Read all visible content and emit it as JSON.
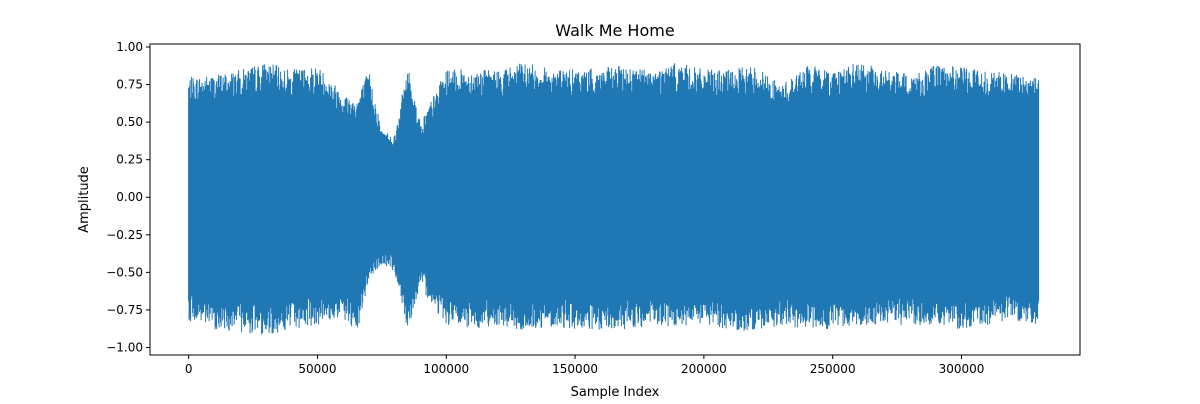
{
  "chart_data": {
    "type": "line",
    "title": "Walk Me Home",
    "xlabel": "Sample Index",
    "ylabel": "Amplitude",
    "xlim": [
      -15000,
      346000
    ],
    "ylim": [
      -1.05,
      1.02
    ],
    "xticks": [
      0,
      50000,
      100000,
      150000,
      200000,
      250000,
      300000
    ],
    "xtick_labels": [
      "0",
      "50000",
      "100000",
      "150000",
      "200000",
      "250000",
      "300000"
    ],
    "yticks": [
      -1.0,
      -0.75,
      -0.5,
      -0.25,
      0.0,
      0.25,
      0.5,
      0.75,
      1.0
    ],
    "ytick_labels": [
      "−1.00",
      "−0.75",
      "−0.50",
      "−0.25",
      "0.00",
      "0.25",
      "0.50",
      "0.75",
      "1.00"
    ],
    "grid": false,
    "series": [
      {
        "color": "#1f77b4",
        "x_range": [
          0,
          330000
        ],
        "envelope_x": [
          0,
          10000,
          20000,
          30000,
          40000,
          50000,
          60000,
          65000,
          70000,
          75000,
          80000,
          85000,
          90000,
          100000,
          110000,
          120000,
          130000,
          140000,
          150000,
          160000,
          170000,
          180000,
          190000,
          200000,
          210000,
          220000,
          230000,
          240000,
          250000,
          260000,
          270000,
          280000,
          290000,
          300000,
          310000,
          320000,
          330000
        ],
        "envelope_upper": [
          0.8,
          0.82,
          0.85,
          0.9,
          0.85,
          0.88,
          0.7,
          0.65,
          0.85,
          0.45,
          0.42,
          0.88,
          0.5,
          0.85,
          0.85,
          0.85,
          0.9,
          0.86,
          0.85,
          0.86,
          0.88,
          0.85,
          0.9,
          0.85,
          0.85,
          0.88,
          0.75,
          0.88,
          0.85,
          0.9,
          0.85,
          0.82,
          0.88,
          0.87,
          0.85,
          0.82,
          0.8
        ],
        "envelope_lower": [
          -0.82,
          -0.88,
          -0.9,
          -0.92,
          -0.88,
          -0.85,
          -0.8,
          -0.95,
          -0.55,
          -0.45,
          -0.5,
          -0.88,
          -0.6,
          -0.85,
          -0.88,
          -0.85,
          -0.9,
          -0.86,
          -0.88,
          -0.9,
          -0.88,
          -0.86,
          -0.88,
          -0.85,
          -0.88,
          -0.9,
          -0.85,
          -0.88,
          -0.88,
          -0.85,
          -0.85,
          -0.86,
          -0.85,
          -0.88,
          -0.85,
          -0.82,
          -0.85
        ]
      }
    ]
  }
}
